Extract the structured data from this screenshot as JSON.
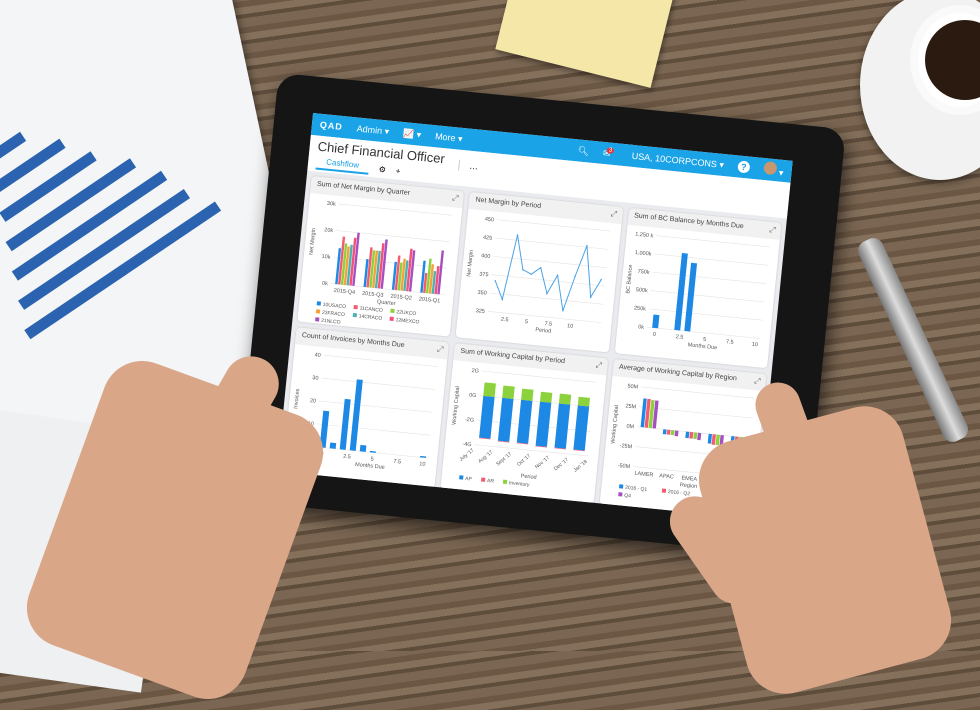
{
  "nav": {
    "logo": "QAD",
    "admin": "Admin ▾",
    "charts": "📈 ▾",
    "more": "More ▾",
    "notifications": "3",
    "domain": "USA, 10CORPCONS ▾",
    "help": "?",
    "user_menu": "▾"
  },
  "page": {
    "title": "Chief Financial Officer",
    "tab": "Cashflow",
    "settings": "⚙",
    "add": "+",
    "more": "..."
  },
  "colors": {
    "accent": "#1ba3e8",
    "blue": "#1e88e5",
    "red": "#f25c6e",
    "green": "#8cd23c",
    "orange": "#f7a13a",
    "teal": "#4bb3b3",
    "pink": "#f3507a",
    "purple": "#a64fc0"
  },
  "chart_data": [
    {
      "type": "bar",
      "title": "Sum of Net Margin by Quarter",
      "xlabel": "Quarter",
      "ylabel": "Net Margin",
      "ylim": [
        0,
        30000
      ],
      "yticks": [
        "0k",
        "10k",
        "20k",
        "30k"
      ],
      "categories": [
        "2015-Q4",
        "2015-Q3",
        "2015-Q2",
        "2015-Q1"
      ],
      "series": [
        {
          "name": "10USACO",
          "color": "#1e88e5",
          "values": [
            13500,
            10500,
            10500,
            12000
          ]
        },
        {
          "name": "11CANCO",
          "color": "#f25c6e",
          "values": [
            18000,
            15000,
            13000,
            7500
          ]
        },
        {
          "name": "22UKCO",
          "color": "#8cd23c",
          "values": [
            15500,
            14000,
            10500,
            13000
          ]
        },
        {
          "name": "23FRACO",
          "color": "#f7a13a",
          "values": [
            14500,
            14000,
            12000,
            11000
          ]
        },
        {
          "name": "14CRACO",
          "color": "#4bb3b3",
          "values": [
            15200,
            14000,
            11500,
            8500
          ]
        },
        {
          "name": "12MEXCO",
          "color": "#f3507a",
          "values": [
            18000,
            17000,
            16000,
            10500
          ]
        },
        {
          "name": "21NLCO",
          "color": "#a64fc0",
          "values": [
            20000,
            18500,
            15500,
            16500
          ]
        }
      ]
    },
    {
      "type": "line",
      "title": "Net Margin by Period",
      "xlabel": "Period",
      "ylabel": "Net Margin",
      "ylim": [
        325,
        450
      ],
      "xlim": [
        0.5,
        13.5
      ],
      "yticks": [
        "325",
        "350",
        "375",
        "400",
        "425",
        "450"
      ],
      "xticks": [
        "2.5",
        "5",
        "7.5",
        "10"
      ],
      "x": [
        1,
        2,
        3,
        4,
        5,
        6,
        7,
        8,
        9,
        10,
        11,
        12,
        13
      ],
      "y": [
        367,
        343,
        432,
        386,
        381,
        391,
        357,
        383,
        336,
        384,
        427,
        358,
        383
      ]
    },
    {
      "type": "bar",
      "title": "Sum of BC Balance by Months Due",
      "xlabel": "Months Due",
      "ylabel": "BC Balance",
      "ylim": [
        0,
        1250000
      ],
      "xlim": [
        -0.8,
        10.5
      ],
      "yticks": [
        "0k",
        "250k",
        "500k",
        "750k",
        "1,000k",
        "1,250 k"
      ],
      "xticks": [
        "0",
        "2.5",
        "5",
        "7.5",
        "10"
      ],
      "x": [
        0,
        2.2,
        3.2
      ],
      "values": [
        180000,
        1050000,
        930000
      ]
    },
    {
      "type": "bar",
      "title": "Count of Invoices by Months Due",
      "xlabel": "Months Due",
      "ylabel": "Invoices",
      "ylim": [
        0,
        40
      ],
      "xlim": [
        -0.8,
        10.5
      ],
      "yticks": [
        "0",
        "10",
        "20",
        "30",
        "40"
      ],
      "xticks": [
        "0",
        "2.5",
        "5",
        "7.5",
        "10"
      ],
      "x": [
        0,
        1,
        2,
        3,
        4,
        5,
        10
      ],
      "values": [
        16,
        2.5,
        22,
        31,
        2.8,
        0.6,
        0.6
      ]
    },
    {
      "type": "bar",
      "stacked": true,
      "title": "Sum of Working Capital by Period",
      "xlabel": "Period",
      "ylabel": "Working Capital",
      "ylim": [
        -4,
        2
      ],
      "yticks": [
        "-4G",
        "-2G",
        "0G",
        "2G"
      ],
      "tick_labels": [
        "July '17",
        "Aug '17",
        "Sept '17",
        "Oct '17",
        "Nov '17",
        "Dec '17",
        "Jan '18"
      ],
      "series": [
        {
          "name": "AP",
          "color": "#1e88e5",
          "values": [
            -3.4,
            -3.5,
            -3.5,
            -3.6,
            -3.6,
            -3.6
          ]
        },
        {
          "name": "AR",
          "color": "#f25c6e",
          "values": [
            -0.05,
            -0.05,
            -0.05,
            -0.05,
            -0.05,
            -0.05
          ]
        },
        {
          "name": "Inventory",
          "color": "#8cd23c",
          "values": [
            1.1,
            1.0,
            0.9,
            0.8,
            0.8,
            0.7
          ]
        }
      ]
    },
    {
      "type": "bar",
      "title": "Average of Working Capital by Region",
      "xlabel": "Region",
      "ylabel": "Working Capital",
      "ylim": [
        -50,
        50
      ],
      "yticks": [
        "-50M",
        "-25M",
        "0M",
        "25M",
        "50M"
      ],
      "categories": [
        "LAMER",
        "APAC",
        "EMEA",
        "NAMER",
        "Blank"
      ],
      "series": [
        {
          "name": "2016 - Q1",
          "color": "#1e88e5",
          "values": [
            36,
            -6,
            -8,
            -12,
            -50
          ]
        },
        {
          "name": "2016 - Q2",
          "color": "#f25c6e",
          "values": [
            36,
            -6,
            -8,
            -13,
            -50
          ]
        },
        {
          "name": "20",
          "color": "#8cd23c",
          "values": [
            35,
            -6,
            -8,
            -13,
            -50
          ]
        },
        {
          "name": "Q4",
          "color": "#a64fc0",
          "values": [
            35,
            -7,
            -9,
            -13,
            -50
          ]
        }
      ]
    }
  ]
}
